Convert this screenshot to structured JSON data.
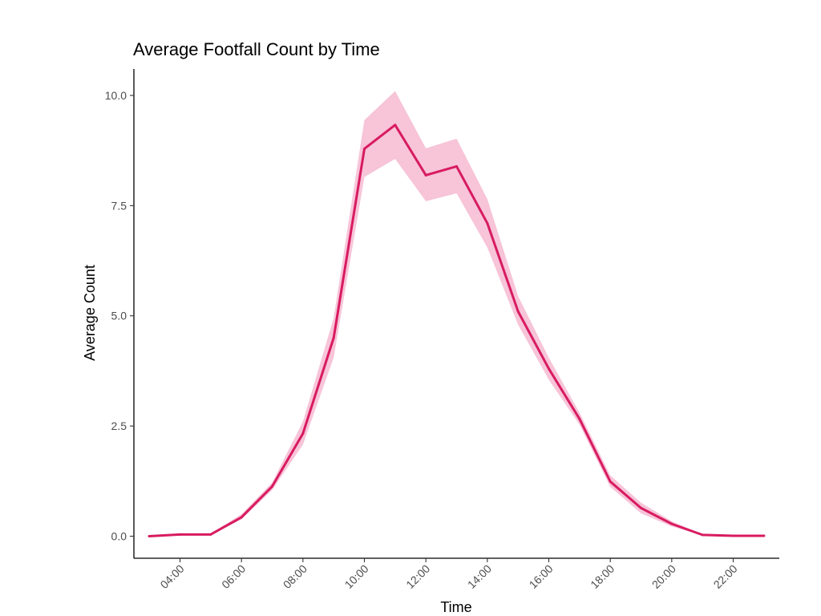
{
  "chart_data": {
    "type": "line",
    "title": "Average Footfall Count by Time",
    "xlabel": "Time",
    "ylabel": "Average Count",
    "x": [
      "03:00",
      "04:00",
      "05:00",
      "06:00",
      "07:00",
      "08:00",
      "09:00",
      "10:00",
      "11:00",
      "12:00",
      "13:00",
      "14:00",
      "15:00",
      "16:00",
      "17:00",
      "18:00",
      "19:00",
      "20:00",
      "21:00",
      "22:00",
      "23:00"
    ],
    "series": [
      {
        "values": [
          0.0,
          0.04,
          0.04,
          0.43,
          1.13,
          2.33,
          4.5,
          8.79,
          9.33,
          8.19,
          8.39,
          7.1,
          5.1,
          3.8,
          2.66,
          1.24,
          0.64,
          0.28,
          0.03,
          0.01,
          0.01
        ],
        "lower": [
          0.0,
          0.03,
          0.03,
          0.38,
          1.05,
          2.08,
          4.05,
          8.15,
          8.56,
          7.6,
          7.78,
          6.55,
          4.8,
          3.55,
          2.53,
          1.12,
          0.52,
          0.22,
          0.02,
          0.0,
          0.0
        ],
        "upper": [
          0.01,
          0.06,
          0.06,
          0.5,
          1.22,
          2.6,
          4.95,
          9.44,
          10.1,
          8.8,
          9.02,
          7.65,
          5.45,
          4.05,
          2.8,
          1.38,
          0.76,
          0.34,
          0.04,
          0.02,
          0.02
        ]
      }
    ],
    "x_tick_labels": [
      "04:00",
      "06:00",
      "08:00",
      "10:00",
      "12:00",
      "14:00",
      "16:00",
      "18:00",
      "20:00",
      "22:00"
    ],
    "y_ticks": [
      0.0,
      2.5,
      5.0,
      7.5,
      10.0
    ],
    "y_tick_labels": [
      "0.0",
      "2.5",
      "5.0",
      "7.5",
      "10.0"
    ],
    "ylim": [
      -0.5,
      10.6
    ],
    "xlim": [
      "02:30",
      "23:30"
    ],
    "grid": false,
    "legend": "none",
    "colors": {
      "line": "#d81b60",
      "band": "#f7c4d8"
    }
  }
}
